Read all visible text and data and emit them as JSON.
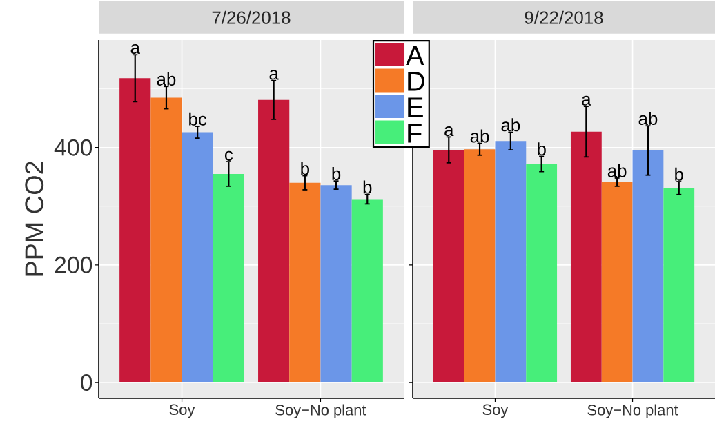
{
  "chart_data": [
    {
      "type": "bar",
      "title": "7/26/2018",
      "ylabel": "PPM CO2",
      "categories": [
        "Soy",
        "Soy−No plant"
      ],
      "series": [
        {
          "name": "A",
          "color": "#c8193a",
          "values": [
            518,
            481
          ],
          "errors": [
            40,
            33
          ],
          "value_labels": [
            "a",
            "a"
          ]
        },
        {
          "name": "D",
          "color": "#f57a27",
          "values": [
            485,
            340
          ],
          "errors": [
            19,
            12
          ],
          "value_labels": [
            "ab",
            "b"
          ]
        },
        {
          "name": "E",
          "color": "#6b96e8",
          "values": [
            426,
            336
          ],
          "errors": [
            10,
            7
          ],
          "value_labels": [
            "bc",
            "b"
          ]
        },
        {
          "name": "F",
          "color": "#47ee7a",
          "values": [
            355,
            312
          ],
          "errors": [
            21,
            8
          ],
          "value_labels": [
            "c",
            "b"
          ]
        }
      ],
      "ylim": [
        -27,
        583
      ],
      "yticks": [
        0,
        {
          "value": 100,
          "label": null
        },
        200,
        {
          "value": 300,
          "label": null
        },
        400,
        {
          "value": 500,
          "label": null
        }
      ],
      "grid": true,
      "legend": "top right"
    },
    {
      "type": "bar",
      "title": "9/22/2018",
      "categories": [
        "Soy",
        "Soy−No plant"
      ],
      "series": [
        {
          "color": "#c8193a",
          "values": [
            396,
            427
          ],
          "errors": [
            22,
            43
          ],
          "value_labels": [
            "a",
            "a"
          ]
        },
        {
          "color": "#f57a27",
          "values": [
            397,
            341
          ],
          "errors": [
            10,
            7
          ],
          "value_labels": [
            "ab",
            "ab"
          ]
        },
        {
          "color": "#6b96e8",
          "values": [
            411,
            395
          ],
          "errors": [
            15,
            42
          ],
          "value_labels": [
            "ab",
            "ab"
          ]
        },
        {
          "color": "#47ee7a",
          "values": [
            372,
            331
          ],
          "errors": [
            13,
            11
          ],
          "value_labels": [
            "b",
            "b"
          ]
        }
      ],
      "ylim": [
        -27,
        583
      ],
      "yticks": [
        0,
        {
          "value": 100,
          "label": null
        },
        200,
        {
          "value": 300,
          "label": null
        },
        400,
        {
          "value": 500,
          "label": null
        }
      ],
      "grid": true,
      "tick_labels": "x"
    }
  ]
}
